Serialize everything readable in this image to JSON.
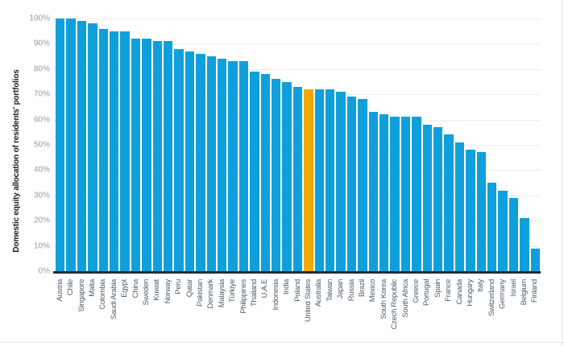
{
  "chart_data": {
    "type": "bar",
    "title": "",
    "xlabel": "",
    "ylabel": "Domestic equity allocation of residents' portfolios",
    "ylim": [
      0,
      100
    ],
    "ytick_step": 10,
    "ytick_suffix": "%",
    "grid": true,
    "legend": "none",
    "categories": [
      "Austria",
      "Chile",
      "Singapore",
      "Malta",
      "Colombia",
      "Saudi Arabia",
      "Egypt",
      "China",
      "Sweden",
      "Kuwait",
      "Norway",
      "Peru",
      "Qatar",
      "Pakistan",
      "Denmark",
      "Malaysia",
      "Türkiye",
      "Philippines",
      "Thailand",
      "U.A.E",
      "Indonesia",
      "India",
      "Poland",
      "United States",
      "Australia",
      "Taiwan",
      "Japan",
      "Russia",
      "Brazil",
      "Mexico",
      "South Korea",
      "Czech Republic",
      "South Africa",
      "Greece",
      "Portugal",
      "Spain",
      "France",
      "Canada",
      "Hungary",
      "Italy",
      "Switzerland",
      "Germany",
      "Israel",
      "Belgium",
      "Finland"
    ],
    "values": [
      100,
      100,
      99,
      98,
      96,
      95,
      95,
      92,
      92,
      91,
      91,
      88,
      87,
      86,
      85,
      84,
      83,
      83,
      79,
      78,
      76,
      75,
      73,
      72,
      72,
      72,
      71,
      69,
      68,
      63,
      62,
      61,
      61,
      61,
      58,
      57,
      54,
      51,
      48,
      47,
      35,
      32,
      29,
      21,
      9
    ],
    "highlight_category": "United States",
    "colors": {
      "bar": "#0FA0DC",
      "highlight": "#F5A800",
      "grid": "#ECECEC",
      "axis_line": "#1E2C38",
      "ytick_label": "#999999",
      "xtick_label": "#4E5F6E",
      "ylabel_color": "#1A1A1A",
      "background": "#FFFFFF"
    }
  }
}
